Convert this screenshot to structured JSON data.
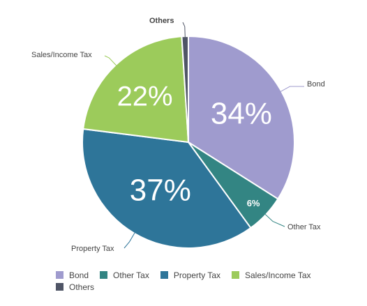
{
  "chart_data": {
    "type": "pie",
    "slices": [
      {
        "label": "Bond",
        "value": 34,
        "display": "34%",
        "color": "#9f9bce"
      },
      {
        "label": "Other Tax",
        "value": 6,
        "display": "6%",
        "color": "#338583"
      },
      {
        "label": "Property Tax",
        "value": 37,
        "display": "37%",
        "color": "#2e7599"
      },
      {
        "label": "Sales/Income Tax",
        "value": 22,
        "display": "22%",
        "color": "#9ccb5b"
      },
      {
        "label": "Others",
        "value": 1,
        "display": "",
        "color": "#4f5566"
      }
    ],
    "legend_position": "bottom",
    "legend": [
      "Bond",
      "Other Tax",
      "Property Tax",
      "Sales/Income Tax",
      "Others"
    ]
  }
}
